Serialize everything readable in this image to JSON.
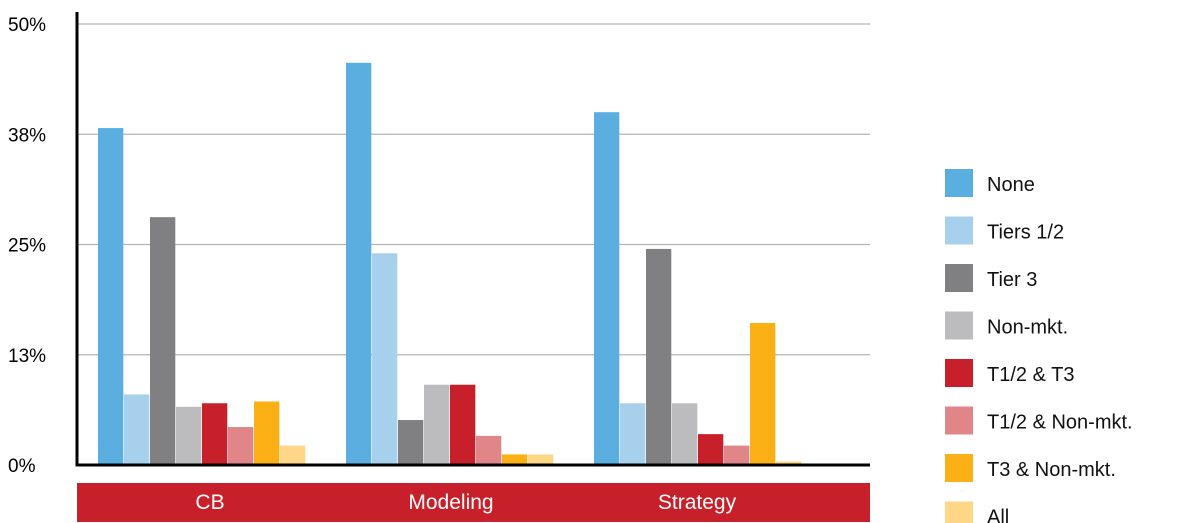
{
  "chart_data": {
    "type": "bar",
    "title": "",
    "xlabel": "",
    "ylabel": "",
    "categories": [
      "CB",
      "Modeling",
      "Strategy"
    ],
    "y_ticks": [
      "0%",
      "13%",
      "25%",
      "38%",
      "50%"
    ],
    "ylim": [
      0,
      50
    ],
    "grid": true,
    "legend_position": "right",
    "series": [
      {
        "name": "None",
        "color": "#5aaee0",
        "values": [
          38.2,
          45.6,
          40.0
        ]
      },
      {
        "name": "Tiers 1/2",
        "color": "#a6d0ec",
        "values": [
          8.0,
          24.0,
          7.0
        ]
      },
      {
        "name": "Tier 3",
        "color": "#808083",
        "values": [
          28.1,
          5.1,
          24.5
        ]
      },
      {
        "name": "Non-mkt.",
        "color": "#bcbcbe",
        "values": [
          6.6,
          9.1,
          7.0
        ]
      },
      {
        "name": "T1/2 & T3",
        "color": "#c8202a",
        "values": [
          7.0,
          9.1,
          3.5
        ]
      },
      {
        "name": "T1/2 & Non-mkt.",
        "color": "#e08588",
        "values": [
          4.3,
          3.3,
          2.2
        ]
      },
      {
        "name": "T3 & Non-mkt.",
        "color": "#fbb116",
        "values": [
          7.2,
          1.2,
          16.1
        ]
      },
      {
        "name": "All",
        "color": "#fdd687",
        "values": [
          2.2,
          1.2,
          0.4
        ]
      }
    ],
    "category_band_color": "#c8202a"
  }
}
